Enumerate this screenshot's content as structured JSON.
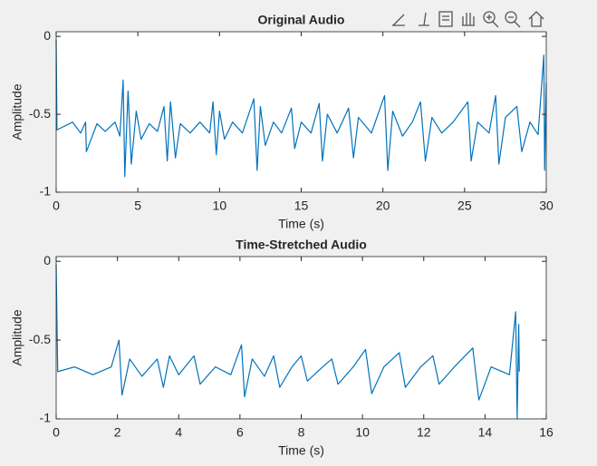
{
  "chart_data": [
    {
      "type": "line",
      "title": "Original Audio",
      "xlabel": "Time (s)",
      "ylabel": "Amplitude",
      "xlim": [
        0,
        30
      ],
      "ylim": [
        -1,
        0.03
      ],
      "xticks": [
        0,
        5,
        10,
        15,
        20,
        25,
        30
      ],
      "yticks": [
        -1,
        -0.5,
        0
      ],
      "grid": false,
      "x": [
        0,
        0.05,
        1,
        1.5,
        1.8,
        1.85,
        2.5,
        3,
        3.6,
        3.9,
        4.1,
        4.2,
        4.4,
        4.6,
        4.9,
        5.2,
        5.7,
        6.2,
        6.6,
        6.8,
        7.0,
        7.3,
        7.6,
        8.2,
        8.8,
        9.4,
        9.6,
        9.8,
        10,
        10.3,
        10.8,
        11.4,
        12.1,
        12.3,
        12.5,
        12.8,
        13.3,
        13.8,
        14.4,
        14.6,
        15,
        15.6,
        16.1,
        16.3,
        16.6,
        17.2,
        17.9,
        18.2,
        18.5,
        19.3,
        20.1,
        20.3,
        20.6,
        21.2,
        21.8,
        22.3,
        22.6,
        23,
        23.6,
        24.3,
        25.2,
        25.4,
        25.8,
        26.5,
        26.9,
        27.1,
        27.5,
        28.2,
        28.5,
        29,
        29.5,
        29.85,
        29.9,
        30
      ],
      "series": [
        {
          "color": "#0072bd",
          "values": [
            -0.02,
            -0.6,
            -0.55,
            -0.62,
            -0.55,
            -0.74,
            -0.56,
            -0.61,
            -0.55,
            -0.64,
            -0.28,
            -0.9,
            -0.35,
            -0.82,
            -0.48,
            -0.66,
            -0.56,
            -0.61,
            -0.45,
            -0.8,
            -0.42,
            -0.78,
            -0.56,
            -0.62,
            -0.55,
            -0.62,
            -0.42,
            -0.76,
            -0.48,
            -0.66,
            -0.55,
            -0.62,
            -0.4,
            -0.86,
            -0.45,
            -0.7,
            -0.55,
            -0.62,
            -0.46,
            -0.72,
            -0.55,
            -0.62,
            -0.43,
            -0.8,
            -0.5,
            -0.62,
            -0.46,
            -0.78,
            -0.52,
            -0.62,
            -0.38,
            -0.86,
            -0.48,
            -0.64,
            -0.55,
            -0.42,
            -0.8,
            -0.52,
            -0.62,
            -0.55,
            -0.42,
            -0.8,
            -0.55,
            -0.62,
            -0.38,
            -0.82,
            -0.52,
            -0.45,
            -0.74,
            -0.55,
            -0.63,
            -0.12,
            -0.86,
            -0.3
          ]
        }
      ]
    },
    {
      "type": "line",
      "title": "Time-Stretched Audio",
      "xlabel": "Time (s)",
      "ylabel": "Amplitude",
      "xlim": [
        0,
        16
      ],
      "ylim": [
        -1,
        0.03
      ],
      "xticks": [
        0,
        2,
        4,
        6,
        8,
        10,
        12,
        14,
        16
      ],
      "yticks": [
        -1,
        -0.5,
        0
      ],
      "grid": false,
      "x": [
        0,
        0.05,
        0.6,
        1.2,
        1.8,
        2.05,
        2.15,
        2.4,
        2.8,
        3.3,
        3.5,
        3.7,
        4.0,
        4.5,
        4.7,
        5.2,
        5.7,
        6.05,
        6.15,
        6.4,
        6.8,
        7.1,
        7.3,
        7.7,
        8.0,
        8.2,
        8.7,
        9.0,
        9.2,
        9.7,
        10.1,
        10.3,
        10.7,
        11.2,
        11.4,
        11.9,
        12.3,
        12.5,
        13,
        13.6,
        13.8,
        14.2,
        14.8,
        15.0,
        15.05,
        15.1,
        15.12
      ],
      "series": [
        {
          "color": "#0072bd",
          "values": [
            -0.02,
            -0.7,
            -0.67,
            -0.72,
            -0.67,
            -0.5,
            -0.85,
            -0.62,
            -0.73,
            -0.62,
            -0.8,
            -0.6,
            -0.72,
            -0.6,
            -0.78,
            -0.67,
            -0.72,
            -0.53,
            -0.86,
            -0.62,
            -0.73,
            -0.6,
            -0.8,
            -0.67,
            -0.6,
            -0.76,
            -0.67,
            -0.62,
            -0.78,
            -0.67,
            -0.56,
            -0.84,
            -0.67,
            -0.58,
            -0.8,
            -0.67,
            -0.6,
            -0.78,
            -0.67,
            -0.55,
            -0.88,
            -0.67,
            -0.72,
            -0.32,
            -1.0,
            -0.4,
            -0.7
          ]
        }
      ]
    }
  ]
}
